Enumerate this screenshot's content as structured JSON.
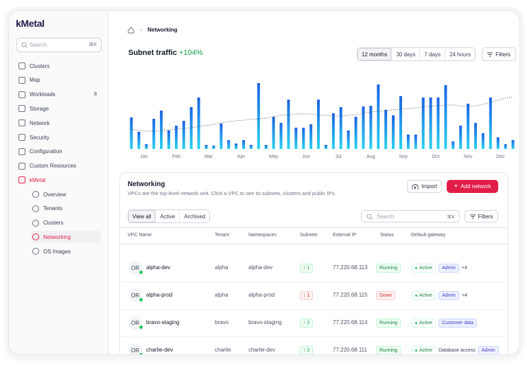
{
  "sidebar": {
    "logo": "kMetal",
    "search_placeholder": "Search",
    "search_shortcut": "⌘K",
    "menu": [
      {
        "label": "Clusters"
      },
      {
        "label": "Map"
      },
      {
        "label": "Workloads",
        "badge": 8
      },
      {
        "label": "Storage"
      },
      {
        "label": "Network"
      },
      {
        "label": "Security"
      },
      {
        "label": "Configuration"
      },
      {
        "label": "Custom Resources"
      },
      {
        "label": "kMetal"
      }
    ],
    "open_section": 8,
    "submenu": [
      {
        "label": "Overview"
      },
      {
        "label": "Tenants"
      },
      {
        "label": "Clusters"
      },
      {
        "label": "Networking"
      },
      {
        "label": "OS Images"
      }
    ],
    "active_submenu": 3
  },
  "breadcrumb": "Networking",
  "chart_data": {
    "type": "bar",
    "title": "Subnet traffic",
    "change": "+104%",
    "x_labels": [
      "Jan",
      "Feb",
      "Mar",
      "Apr",
      "May",
      "Jun",
      "Jul",
      "Aug",
      "Sep",
      "Oct",
      "Nov",
      "Dec"
    ],
    "values": [
      46,
      25,
      7,
      44,
      56,
      27,
      34,
      41,
      61,
      75,
      6,
      5,
      37,
      13,
      8,
      13,
      6,
      96,
      6,
      47,
      38,
      72,
      31,
      31,
      36,
      72,
      6,
      52,
      61,
      27,
      47,
      62,
      63,
      94,
      57,
      49,
      77,
      21,
      21,
      75,
      75,
      75,
      93,
      11,
      34,
      66,
      38,
      23,
      75,
      17,
      7,
      13
    ],
    "trend": [
      29,
      27,
      26,
      26,
      27,
      28,
      29,
      30,
      31,
      33,
      34,
      36,
      38,
      40,
      41,
      42,
      43,
      44,
      45,
      47,
      49,
      50,
      51,
      51,
      51,
      50,
      49,
      48,
      48,
      49,
      50,
      52,
      54,
      55,
      56,
      57,
      58,
      59,
      60,
      61,
      62,
      63,
      64,
      64,
      63,
      62,
      63,
      65,
      68,
      71,
      74,
      76
    ],
    "ylim": [
      0,
      100
    ],
    "color_top": "#1d63e4",
    "color_bottom": "#2bd3f0",
    "trend_color": "#374151",
    "change_color": "#16a34a"
  },
  "time_ranges": {
    "options": [
      "12 months",
      "30 days",
      "7 days",
      "24 hours"
    ],
    "selected": 0
  },
  "filters": "Filters",
  "networking": {
    "title": "Networking",
    "description": "VPCs are the top-level network unit. Click a VPC to see its subnets, clusters and public IPs.",
    "import": "Import",
    "add": "Add network",
    "tabs": [
      "View all",
      "Active",
      "Archived"
    ],
    "selected_tab": 0,
    "search_placeholder": "Search",
    "search_shortcut": "⌘K",
    "filters": "Filters",
    "columns": [
      "VPC Name",
      "Tenant",
      "Namespaces",
      "Subnets",
      "External IP",
      "Status",
      "Default gateway"
    ],
    "rows": [
      {
        "avatar": "OR",
        "name": "alpha-dev",
        "tenant": "alpha",
        "namespace": "alpha-dev",
        "subnets": "1",
        "subnet_trend": "up",
        "ip": "77.220.68.113",
        "status": "Running",
        "status_ok": true,
        "gateway": [
          {
            "text": "Active",
            "kind": "active"
          },
          {
            "text": "Admin",
            "kind": "tag"
          },
          {
            "text": "+4",
            "kind": "plain"
          }
        ]
      },
      {
        "avatar": "OR",
        "name": "alpha-prod",
        "tenant": "alpha",
        "namespace": "alpha-prod",
        "subnets": "1",
        "subnet_trend": "down",
        "ip": "77.220.68.115",
        "status": "Down",
        "status_ok": false,
        "gateway": [
          {
            "text": "Active",
            "kind": "active"
          },
          {
            "text": "Admin",
            "kind": "tag"
          },
          {
            "text": "+4",
            "kind": "plain"
          }
        ]
      },
      {
        "avatar": "OR",
        "name": "bravo-staging",
        "tenant": "bravo",
        "namespace": "bravo-staging",
        "subnets": "2",
        "subnet_trend": "up",
        "ip": "77.220.68.114",
        "status": "Running",
        "status_ok": true,
        "gateway": [
          {
            "text": "Active",
            "kind": "active"
          },
          {
            "text": "Customer data",
            "kind": "tag"
          }
        ]
      },
      {
        "avatar": "OR",
        "name": "charlie-dev",
        "tenant": "charlie",
        "namespace": "charlie-dev",
        "subnets": "2",
        "subnet_trend": "up",
        "ip": "77.220.68.111",
        "status": "Running",
        "status_ok": true,
        "gateway": [
          {
            "text": "Active",
            "kind": "active"
          },
          {
            "text": "Database access",
            "kind": "plain"
          },
          {
            "text": "Admin",
            "kind": "tag"
          }
        ]
      }
    ]
  }
}
